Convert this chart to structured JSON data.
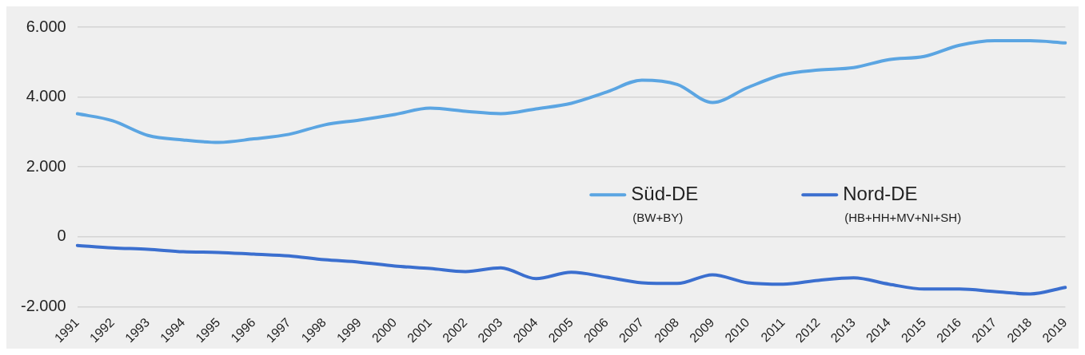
{
  "chart_data": {
    "type": "line",
    "categories": [
      "1991",
      "1992",
      "1993",
      "1994",
      "1995",
      "1996",
      "1997",
      "1998",
      "1999",
      "2000",
      "2001",
      "2002",
      "2003",
      "2004",
      "2005",
      "2006",
      "2007",
      "2008",
      "2009",
      "2010",
      "2011",
      "2012",
      "2013",
      "2014",
      "2015",
      "2016",
      "2017",
      "2018",
      "2019"
    ],
    "series": [
      {
        "name": "Süd-DE",
        "color": "#5ba5e2",
        "values": [
          3520,
          3320,
          2900,
          2770,
          2700,
          2800,
          2930,
          3200,
          3340,
          3500,
          3680,
          3590,
          3520,
          3660,
          3820,
          4140,
          4480,
          4360,
          3840,
          4270,
          4640,
          4770,
          4840,
          5070,
          5160,
          5480,
          5610,
          5610,
          5550
        ]
      },
      {
        "name": "Nord-DE",
        "color": "#3b6fcf",
        "values": [
          -250,
          -320,
          -360,
          -430,
          -450,
          -500,
          -550,
          -660,
          -730,
          -840,
          -910,
          -1000,
          -890,
          -1200,
          -1020,
          -1160,
          -1320,
          -1340,
          -1090,
          -1320,
          -1360,
          -1250,
          -1180,
          -1360,
          -1500,
          -1500,
          -1570,
          -1640,
          -1450
        ]
      }
    ],
    "ylim": [
      -2000,
      6000
    ],
    "yticks": [
      {
        "value": -2000,
        "label": "-2.000"
      },
      0,
      {
        "value": 2000,
        "label": "2.000"
      },
      {
        "value": 4000,
        "label": "4.000"
      },
      {
        "value": 6000,
        "label": "6.000"
      }
    ],
    "grid": "y",
    "legend": "right",
    "marker": "none",
    "line_style": "solid",
    "annotations": [
      "(BW+BY)",
      "(HB+HH+MV+NI+SH)"
    ]
  }
}
